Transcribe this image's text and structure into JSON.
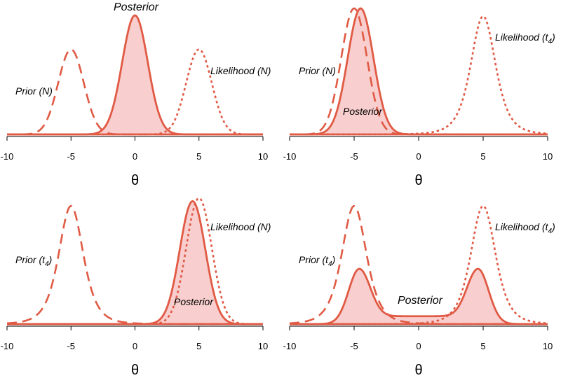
{
  "colors": {
    "curve": "#e05a44",
    "fill": "#f7c9c9"
  },
  "chart_data": [
    {
      "type": "line",
      "xlim": [
        -10,
        10
      ],
      "xticks": [
        -10,
        -5,
        0,
        5,
        10
      ],
      "xlabel": "θ",
      "series": [
        {
          "key": "prior",
          "style": "dashed",
          "dist": "normal",
          "center": -5,
          "peak": 0.4,
          "label": "Prior (N)"
        },
        {
          "key": "likelihood",
          "style": "dotted",
          "dist": "normal",
          "center": 5,
          "peak": 0.4,
          "label": "Likelihood (N)"
        },
        {
          "key": "posterior",
          "style": "solid-filled",
          "dist": "normal",
          "center": 0,
          "peak": 0.56,
          "label": "Posterior"
        }
      ]
    },
    {
      "type": "line",
      "xlim": [
        -10,
        10
      ],
      "xticks": [
        -10,
        -5,
        0,
        5,
        10
      ],
      "xlabel": "θ",
      "series": [
        {
          "key": "prior",
          "style": "dashed",
          "dist": "normal",
          "center": -5,
          "peak": 0.4,
          "label": "Prior (N)"
        },
        {
          "key": "likelihood",
          "style": "dotted",
          "dist": "t4",
          "center": 5,
          "peak": 0.375,
          "label": "Likelihood (t",
          "label_sub": "4",
          "label_end": ")"
        },
        {
          "key": "posterior",
          "style": "solid-filled",
          "dist": "normal",
          "center": -4.5,
          "peak": 0.4,
          "label": "Posterior"
        }
      ]
    },
    {
      "type": "line",
      "xlim": [
        -10,
        10
      ],
      "xticks": [
        -10,
        -5,
        0,
        5,
        10
      ],
      "xlabel": "θ",
      "series": [
        {
          "key": "prior",
          "style": "dashed",
          "dist": "t4",
          "center": -5,
          "peak": 0.375,
          "label": "Prior (t",
          "label_sub": "4",
          "label_end": ")"
        },
        {
          "key": "likelihood",
          "style": "dotted",
          "dist": "normal",
          "center": 5,
          "peak": 0.4,
          "label": "Likelihood (N)"
        },
        {
          "key": "posterior",
          "style": "solid-filled",
          "dist": "normal",
          "center": 4.5,
          "peak": 0.39,
          "label": "Posterior"
        }
      ]
    },
    {
      "type": "line",
      "xlim": [
        -10,
        10
      ],
      "xticks": [
        -10,
        -5,
        0,
        5,
        10
      ],
      "xlabel": "θ",
      "series": [
        {
          "key": "prior",
          "style": "dashed",
          "dist": "t4",
          "center": -5,
          "peak": 0.375,
          "label": "Prior (t",
          "label_sub": "4",
          "label_end": ")"
        },
        {
          "key": "likelihood",
          "style": "dotted",
          "dist": "t4",
          "center": 5,
          "peak": 0.375,
          "label": "Likelihood (t",
          "label_sub": "4",
          "label_end": ")"
        },
        {
          "key": "posterior",
          "style": "solid-filled",
          "dist": "bimodal",
          "modes": [
            -4.6,
            4.6
          ],
          "peak": 0.16,
          "trough": 0.025,
          "label": "Posterior"
        }
      ]
    }
  ]
}
